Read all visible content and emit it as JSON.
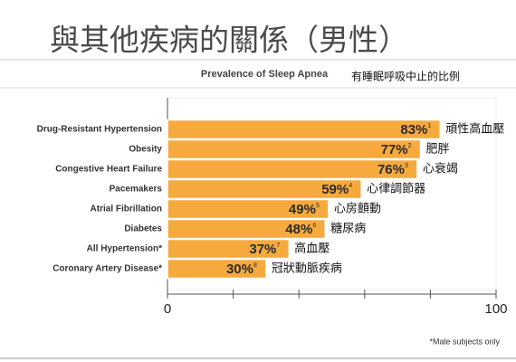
{
  "chart_data": {
    "type": "barh",
    "title": "與其他疾病的關係（男性）",
    "subtitle": "Prevalence of Sleep Apnea",
    "subtitle_zh": "有睡眠呼吸中止的比例",
    "footnote": "*Male subjects only",
    "categories": [
      "Drug-Resistant Hypertension",
      "Obesity",
      "Congestive Heart Failure",
      "Pacemakers",
      "Atrial Fibrillation",
      "Diabetes",
      "All Hypertension*",
      "Coronary Artery Disease*"
    ],
    "categories_zh": [
      "頑性高血壓",
      "肥胖",
      "心衰竭",
      "心律調節器",
      "心房顫動",
      "糖尿病",
      "高血壓",
      "冠狀動脈疾病"
    ],
    "values": [
      83,
      77,
      76,
      59,
      49,
      48,
      37,
      30
    ],
    "value_labels": [
      "83%",
      "77%",
      "76%",
      "59%",
      "49%",
      "48%",
      "37%",
      "30%"
    ],
    "value_notes": [
      "1",
      "2",
      "3",
      "4",
      "5",
      "6",
      "7",
      "8"
    ],
    "color": "#f6aa3e",
    "xlim": [
      0,
      100
    ],
    "xticks": [
      0,
      {
        "value": 20,
        "label": null
      },
      {
        "value": 40,
        "label": null
      },
      {
        "value": 60,
        "label": null
      },
      {
        "value": 80,
        "label": null
      },
      100
    ]
  }
}
